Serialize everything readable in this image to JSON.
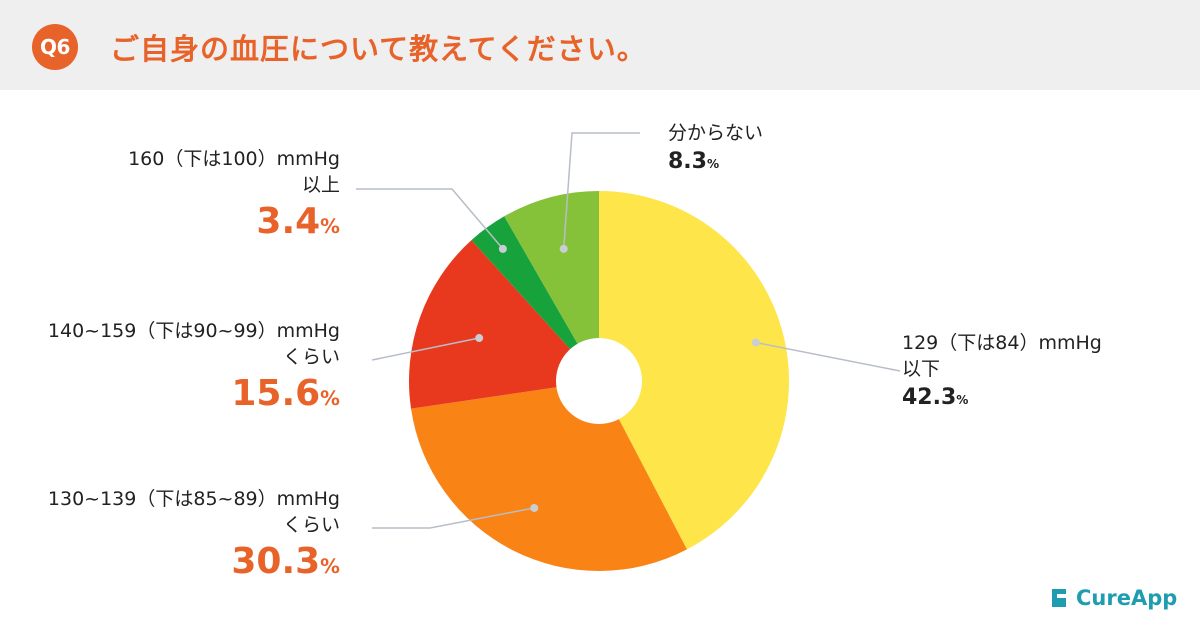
{
  "header": {
    "badge": "Q6",
    "title": "ご自身の血圧について教えてください。"
  },
  "chart_data": {
    "type": "pie",
    "donut": true,
    "start": "top",
    "direction": "clockwise",
    "slices": [
      {
        "label": "129（下は84）mmHg 以下",
        "line1": "129（下は84）mmHg",
        "line2": "以下",
        "value": 42.3,
        "value_text": "42.3",
        "unit": "%",
        "color": "#fde54a",
        "label_side": "right"
      },
      {
        "label": "130~139（下は85~89）mmHg くらい",
        "line1": "130~139（下は85~89）mmHg",
        "line2": "くらい",
        "value": 30.3,
        "value_text": "30.3",
        "unit": "%",
        "color": "#f98315",
        "label_side": "left"
      },
      {
        "label": "140~159（下は90~99）mmHg くらい",
        "line1": "140~159（下は90~99）mmHg",
        "line2": "くらい",
        "value": 15.6,
        "value_text": "15.6",
        "unit": "%",
        "color": "#e8381e",
        "label_side": "left"
      },
      {
        "label": "160（下は100）mmHg 以上",
        "line1": "160（下は100）mmHg",
        "line2": "以上",
        "value": 3.4,
        "value_text": "3.4",
        "unit": "%",
        "color": "#17a23b",
        "label_side": "left"
      },
      {
        "label": "分からない",
        "line1": "分からない",
        "line2": "",
        "value": 8.3,
        "value_text": "8.3",
        "unit": "%",
        "color": "#86c13a",
        "label_side": "right"
      }
    ]
  },
  "logo": {
    "text": "CureApp"
  }
}
